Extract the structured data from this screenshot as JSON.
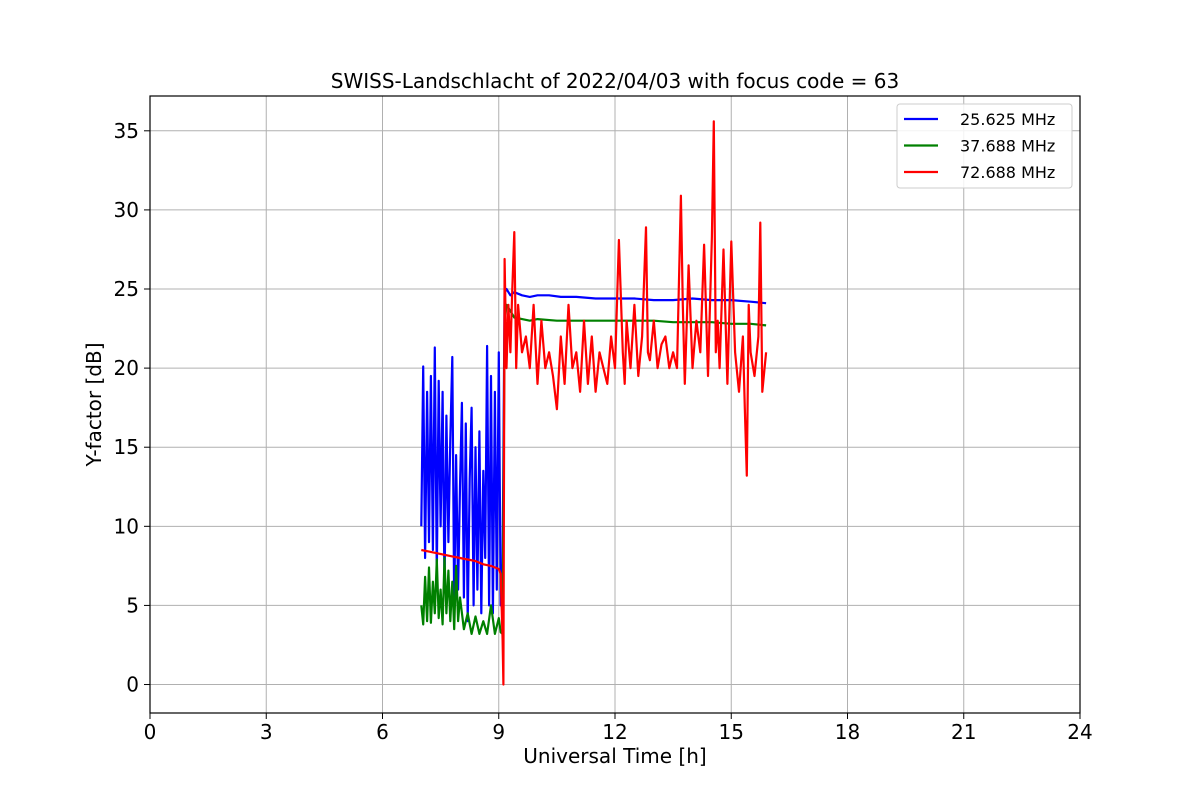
{
  "chart_data": {
    "type": "line",
    "title": "SWISS-Landschlacht of 2022/04/03 with focus code = 63",
    "xlabel": "Universal Time [h]",
    "ylabel": "Y-factor [dB]",
    "xlim": [
      0,
      24
    ],
    "ylim": [
      -1.8,
      37.2
    ],
    "xticks": [
      0,
      3,
      6,
      9,
      12,
      15,
      18,
      21,
      24
    ],
    "yticks": [
      0,
      5,
      10,
      15,
      20,
      25,
      30,
      35
    ],
    "grid": true,
    "legend_position": "top-right",
    "series": [
      {
        "name": "25.625 MHz",
        "color": "#0000ff",
        "x": [
          7.0,
          7.05,
          7.1,
          7.15,
          7.2,
          7.25,
          7.3,
          7.35,
          7.4,
          7.45,
          7.5,
          7.55,
          7.6,
          7.65,
          7.7,
          7.75,
          7.8,
          7.85,
          7.9,
          7.95,
          8.0,
          8.05,
          8.1,
          8.15,
          8.2,
          8.25,
          8.3,
          8.35,
          8.4,
          8.45,
          8.5,
          8.55,
          8.6,
          8.65,
          8.7,
          8.75,
          8.8,
          8.85,
          8.9,
          8.95,
          9.0,
          9.05,
          9.1,
          9.15,
          9.2,
          9.3,
          9.4,
          9.6,
          9.8,
          10.0,
          10.3,
          10.6,
          11.0,
          11.5,
          12.0,
          12.5,
          13.0,
          13.5,
          14.0,
          14.5,
          15.0,
          15.5,
          15.9
        ],
        "y": [
          10,
          20.1,
          8,
          18.5,
          9,
          19.5,
          8.5,
          21.3,
          7,
          19.2,
          10,
          18.5,
          6,
          17,
          9,
          15.5,
          20.7,
          5,
          14.5,
          6,
          12.5,
          17.8,
          5.5,
          16.5,
          4,
          13,
          17.5,
          5,
          15,
          6,
          16,
          4.5,
          13.5,
          8,
          21.4,
          5,
          19.5,
          4.5,
          18.5,
          6,
          21,
          5,
          7.5,
          24.8,
          25.0,
          24.6,
          24.8,
          24.6,
          24.5,
          24.6,
          24.6,
          24.5,
          24.5,
          24.4,
          24.4,
          24.4,
          24.3,
          24.3,
          24.4,
          24.3,
          24.3,
          24.2,
          24.1
        ]
      },
      {
        "name": "37.688 MHz",
        "color": "#008000",
        "x": [
          7.0,
          7.05,
          7.1,
          7.15,
          7.2,
          7.25,
          7.3,
          7.35,
          7.4,
          7.45,
          7.5,
          7.55,
          7.6,
          7.65,
          7.7,
          7.75,
          7.8,
          7.85,
          7.9,
          7.95,
          8.0,
          8.1,
          8.2,
          8.3,
          8.4,
          8.5,
          8.6,
          8.7,
          8.8,
          8.9,
          9.0,
          9.05,
          9.1,
          9.15,
          9.2,
          9.4,
          9.6,
          9.8,
          10.0,
          10.5,
          11.0,
          11.5,
          12.0,
          12.5,
          13.0,
          13.5,
          14.0,
          14.5,
          15.0,
          15.5,
          15.9
        ],
        "y": [
          5,
          3.8,
          6.8,
          4,
          7.4,
          3.9,
          6.5,
          4.5,
          7.9,
          4.2,
          6,
          3.8,
          8,
          4.5,
          7.2,
          4,
          6.5,
          3.5,
          7.5,
          4,
          5.5,
          3.5,
          4.5,
          3.2,
          4.3,
          3.2,
          4,
          3.2,
          5,
          3.2,
          4.2,
          3.3,
          3.2,
          22.8,
          24,
          23.2,
          23.1,
          23.0,
          23.1,
          23.0,
          23.0,
          23.0,
          23.0,
          23.0,
          23.0,
          22.9,
          22.9,
          22.9,
          22.8,
          22.8,
          22.7
        ]
      },
      {
        "name": "72.688 MHz",
        "color": "#ff0000",
        "x": [
          7.0,
          7.2,
          7.4,
          7.6,
          7.8,
          8.0,
          8.2,
          8.4,
          8.6,
          8.8,
          9.0,
          9.05,
          9.1,
          9.12,
          9.15,
          9.2,
          9.25,
          9.3,
          9.35,
          9.4,
          9.45,
          9.5,
          9.6,
          9.7,
          9.8,
          9.9,
          10.0,
          10.1,
          10.2,
          10.3,
          10.4,
          10.5,
          10.6,
          10.7,
          10.8,
          10.9,
          11.0,
          11.1,
          11.2,
          11.3,
          11.4,
          11.5,
          11.6,
          11.7,
          11.8,
          11.9,
          12.0,
          12.1,
          12.2,
          12.25,
          12.3,
          12.4,
          12.5,
          12.6,
          12.7,
          12.8,
          12.85,
          12.9,
          13.0,
          13.1,
          13.2,
          13.3,
          13.4,
          13.5,
          13.6,
          13.7,
          13.75,
          13.8,
          13.9,
          14.0,
          14.1,
          14.2,
          14.3,
          14.4,
          14.5,
          14.55,
          14.6,
          14.65,
          14.7,
          14.8,
          14.9,
          15.0,
          15.1,
          15.2,
          15.3,
          15.35,
          15.4,
          15.45,
          15.5,
          15.6,
          15.7,
          15.75,
          15.8,
          15.9
        ],
        "y": [
          8.5,
          8.4,
          8.3,
          8.2,
          8.1,
          8.0,
          7.9,
          7.8,
          7.6,
          7.5,
          7.3,
          7.0,
          2.8,
          0.0,
          26.9,
          20,
          24,
          21,
          25,
          28.6,
          20,
          24,
          21,
          22,
          20,
          24,
          19,
          23,
          20,
          21,
          19.5,
          17.4,
          22,
          19,
          24,
          20,
          21,
          18.5,
          23,
          19,
          22,
          18.5,
          21,
          20,
          19,
          22,
          20,
          28.1,
          21,
          19,
          23,
          20,
          24,
          19.5,
          22,
          28.9,
          21,
          20.5,
          23,
          20,
          21.5,
          22,
          20,
          21,
          20,
          30.9,
          24,
          19,
          26.5,
          20,
          23,
          21,
          27.8,
          19.5,
          28.3,
          35.6,
          21,
          23,
          20,
          27.5,
          19,
          28,
          21,
          18.5,
          22,
          17.5,
          13.2,
          24,
          21,
          19.5,
          22,
          29.2,
          18.5,
          21
        ]
      }
    ]
  }
}
